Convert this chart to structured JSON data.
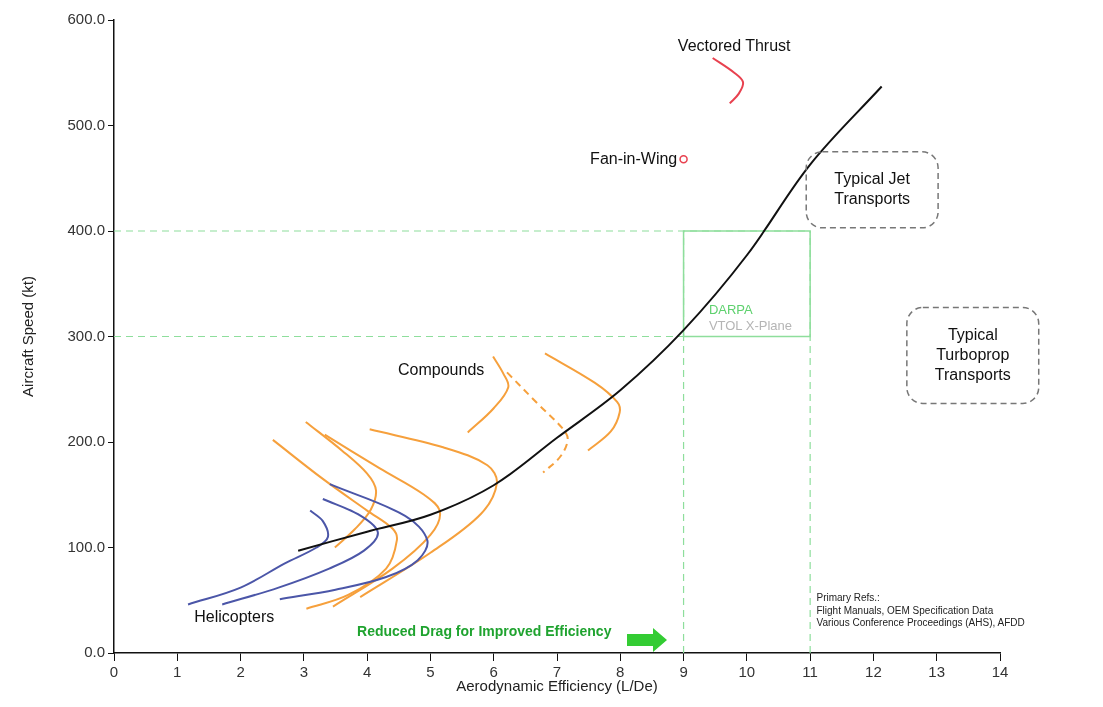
{
  "chart_data": {
    "type": "line",
    "xlabel": "Aerodynamic Efficiency (L/De)",
    "ylabel": "Aircraft Speed (kt)",
    "xlim": [
      0,
      14
    ],
    "xticks": [
      0,
      1,
      2,
      3,
      4,
      5,
      6,
      7,
      8,
      9,
      10,
      11,
      12,
      13,
      14
    ],
    "ylim": [
      0,
      600
    ],
    "yticks": [
      {
        "value": 0,
        "label": "0.0"
      },
      {
        "value": 100,
        "label": "100.0"
      },
      {
        "value": 200,
        "label": "200.0"
      },
      {
        "value": 300,
        "label": "300.0"
      },
      {
        "value": 400,
        "label": "400.0"
      },
      {
        "value": 500,
        "label": "500.0"
      },
      {
        "value": 600,
        "label": "600.0"
      }
    ],
    "grid": false,
    "legend": false,
    "series": [
      {
        "type": "line",
        "color": "#111111",
        "x": [
          2.91,
          4,
          5,
          6,
          7,
          8,
          9,
          10,
          11,
          12.13
        ],
        "values": [
          97,
          115,
          131,
          159,
          204,
          249,
          306,
          377,
          463,
          537
        ]
      },
      {
        "type": "line",
        "color": "#4b56a8",
        "x": [
          1.17,
          2.0,
          2.7,
          3.2,
          3.38,
          3.3,
          3.1
        ],
        "values": [
          46,
          62,
          85,
          100,
          110,
          125,
          135
        ]
      },
      {
        "type": "line",
        "color": "#4b56a8",
        "x": [
          1.71,
          2.6,
          3.4,
          3.95,
          4.17,
          3.9,
          3.3
        ],
        "values": [
          46,
          62,
          80,
          97,
          114,
          130,
          146
        ]
      },
      {
        "type": "line",
        "color": "#4b56a8",
        "x": [
          2.62,
          3.5,
          4.3,
          4.8,
          4.95,
          4.6,
          3.41
        ],
        "values": [
          51,
          60,
          72,
          88,
          107,
          130,
          160
        ]
      },
      {
        "type": "line",
        "color": "#f6a03c",
        "x": [
          2.51,
          3.3,
          4.0,
          4.4,
          4.47,
          4.3,
          3.7,
          3.04
        ],
        "values": [
          202,
          165,
          135,
          118,
          107,
          80,
          55,
          42
        ]
      },
      {
        "type": "line",
        "color": "#f6a03c",
        "x": [
          3.03,
          3.6,
          4.0,
          4.14,
          4.05,
          3.8,
          3.49
        ],
        "values": [
          219,
          192,
          170,
          154,
          135,
          117,
          100
        ]
      },
      {
        "type": "line",
        "color": "#f6a03c",
        "x": [
          3.33,
          4.2,
          4.9,
          5.15,
          5.0,
          4.4,
          3.46
        ],
        "values": [
          207,
          175,
          150,
          134,
          112,
          80,
          44
        ]
      },
      {
        "type": "line",
        "color": "#f6a03c",
        "x": [
          4.04,
          5.2,
          5.9,
          6.05,
          5.8,
          5.0,
          3.89
        ],
        "values": [
          212,
          195,
          178,
          161,
          132,
          95,
          53
        ]
      },
      {
        "type": "line",
        "color": "#f6a03c",
        "x": [
          5.99,
          6.15,
          6.23,
          6.0,
          5.59
        ],
        "values": [
          281,
          265,
          252,
          232,
          209
        ]
      },
      {
        "type": "line",
        "color": "#f6a03c",
        "line_style": "dashed",
        "x": [
          6.21,
          6.7,
          7.1,
          7.17,
          7.05,
          6.78
        ],
        "values": [
          266,
          236,
          212,
          202,
          186,
          171
        ]
      },
      {
        "type": "line",
        "color": "#f6a03c",
        "x": [
          6.81,
          7.6,
          7.95,
          7.99,
          7.85,
          7.49
        ],
        "values": [
          284,
          256,
          238,
          228,
          210,
          192
        ]
      },
      {
        "type": "line",
        "color": "#e8414f",
        "x": [
          9.46,
          9.8,
          9.94,
          9.87,
          9.73
        ],
        "values": [
          564,
          550,
          541,
          530,
          521
        ]
      },
      {
        "type": "scatter",
        "color": "#e8414f",
        "marker": "circle",
        "x": [
          9.0
        ],
        "values": [
          468
        ]
      }
    ],
    "ref_lines": [
      {
        "axis": "y",
        "value": 400,
        "color": "#8ede9c",
        "line_style": "dashed"
      },
      {
        "axis": "y",
        "value": 300,
        "color": "#8ede9c",
        "line_style": "dashed"
      },
      {
        "axis": "x",
        "value": 9,
        "color": "#8ede9c",
        "line_style": "dashed"
      },
      {
        "axis": "x",
        "value": 11,
        "color": "#8ede9c",
        "line_style": "dashed"
      }
    ],
    "annotations": [
      "Helicopters",
      "Compounds",
      "Vectored Thrust",
      {
        "text": "Fan-in-Wing",
        "x": 8.9,
        "y": 468
      },
      "Typical Jet\nTransports",
      "Typical\nTurboprop\nTransports",
      {
        "text": "DARPA",
        "x": 9.4,
        "y": 325
      },
      "VTOL X-Plane",
      "Reduced Drag for Improved Efficiency",
      "Primary Refs.:\nFlight Manuals, OEM Specification Data\nVarious Conference Proceedings (AHS), AFDD"
    ]
  }
}
